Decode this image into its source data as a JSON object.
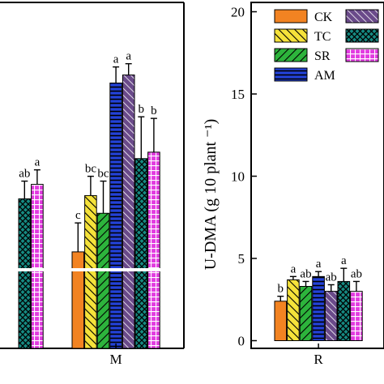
{
  "chart_data": [
    {
      "type": "bar",
      "categories": [
        "",
        "M"
      ],
      "ylim": [
        0,
        20
      ],
      "xlabel": "",
      "ylabel": "",
      "series": [
        {
          "name": "CK",
          "values": [
            null,
            6.0
          ],
          "errors": [
            null,
            1.8
          ],
          "letters": [
            null,
            "c"
          ],
          "color": "#f28322",
          "pattern": "solid"
        },
        {
          "name": "TC",
          "values": [
            null,
            9.5
          ],
          "errors": [
            null,
            1.2
          ],
          "letters": [
            null,
            "bc"
          ],
          "color": "#f5e23a",
          "pattern": "diag"
        },
        {
          "name": "SR",
          "values": [
            null,
            8.4
          ],
          "errors": [
            null,
            2.0
          ],
          "letters": [
            null,
            "bc"
          ],
          "color": "#2db43c",
          "pattern": "diag"
        },
        {
          "name": "AM",
          "values": [
            null,
            16.5
          ],
          "errors": [
            null,
            1.0
          ],
          "letters": [
            null,
            "a"
          ],
          "color": "#2342d8",
          "pattern": "hlines"
        },
        {
          "name": "",
          "values": [
            null,
            17.0
          ],
          "errors": [
            null,
            0.7
          ],
          "letters": [
            null,
            "a"
          ],
          "color": "#6a4a8a",
          "pattern": "diag"
        },
        {
          "name": "",
          "values": [
            9.3,
            11.8
          ],
          "errors": [
            1.1,
            2.6
          ],
          "letters": [
            "ab",
            "b"
          ],
          "color": "#168a82",
          "pattern": "cross"
        },
        {
          "name": "",
          "values": [
            10.2,
            12.2
          ],
          "errors": [
            0.9,
            2.1
          ],
          "letters": [
            "a",
            "b"
          ],
          "color": "#e23be0",
          "pattern": "grid"
        }
      ]
    },
    {
      "type": "bar",
      "categories": [
        "R"
      ],
      "ylim": [
        0,
        21
      ],
      "yticks": [
        "0",
        "5",
        "10",
        "15",
        "20"
      ],
      "ylabel": "U-DMA (g 10 plant ⁻¹)",
      "legend": "top",
      "series": [
        {
          "name": "CK",
          "values": [
            2.4
          ],
          "errors": [
            0.3
          ],
          "letters": [
            "b"
          ]
        },
        {
          "name": "TC",
          "values": [
            3.7
          ],
          "errors": [
            0.2
          ],
          "letters": [
            "a"
          ]
        },
        {
          "name": "SR",
          "values": [
            3.3
          ],
          "errors": [
            0.3
          ],
          "letters": [
            "ab"
          ]
        },
        {
          "name": "AM",
          "values": [
            3.9
          ],
          "errors": [
            0.3
          ],
          "letters": [
            "a"
          ]
        },
        {
          "name": "",
          "values": [
            3.0
          ],
          "errors": [
            0.4
          ],
          "letters": [
            "ab"
          ]
        },
        {
          "name": "",
          "values": [
            3.6
          ],
          "errors": [
            0.8
          ],
          "letters": [
            "a"
          ]
        },
        {
          "name": "",
          "values": [
            3.0
          ],
          "errors": [
            0.6
          ],
          "letters": [
            "ab"
          ]
        }
      ]
    }
  ]
}
